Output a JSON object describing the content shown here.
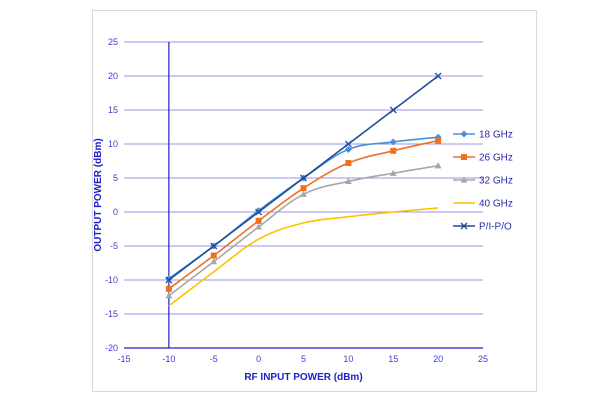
{
  "chart_data": {
    "type": "line",
    "xlabel": "RF INPUT POWER (dBm)",
    "ylabel": "OUTPUT POWER (dBm)",
    "xlim": [
      -15,
      25
    ],
    "ylim": [
      -20,
      25
    ],
    "x_ticks": [
      "-15",
      "-10",
      "-5",
      "0",
      "5",
      "10",
      "15",
      "20",
      "25"
    ],
    "y_ticks": [
      "25",
      "20",
      "15",
      "10",
      "5",
      "0",
      "-5",
      "-10",
      "-15",
      "-20"
    ],
    "grid": true,
    "legend_position": "right",
    "x": [
      -10,
      -5,
      0,
      5,
      10,
      15,
      20
    ],
    "series": [
      {
        "name": "18 GHz",
        "color": "#4a8fd8",
        "marker": "diamond",
        "values": [
          -9.8,
          -5.0,
          0.2,
          5.0,
          9.2,
          10.3,
          11.0
        ]
      },
      {
        "name": "26 GHz",
        "color": "#ee7022",
        "marker": "square",
        "values": [
          -11.3,
          -6.4,
          -1.3,
          3.5,
          7.2,
          9.0,
          10.5
        ]
      },
      {
        "name": "32 GHz",
        "color": "#a6a6a6",
        "marker": "triangle",
        "values": [
          -12.3,
          -7.3,
          -2.2,
          2.6,
          4.5,
          5.7,
          6.8
        ]
      },
      {
        "name": "40 GHz",
        "color": "#ffc000",
        "marker": "none",
        "values": [
          -13.8,
          -8.8,
          -4.0,
          -1.6,
          -0.7,
          0.0,
          0.6
        ]
      },
      {
        "name": "P/I-P/O",
        "color": "#1f4e9a",
        "marker": "x",
        "values": [
          -10,
          -5,
          0,
          5,
          10,
          15,
          20
        ]
      }
    ]
  }
}
